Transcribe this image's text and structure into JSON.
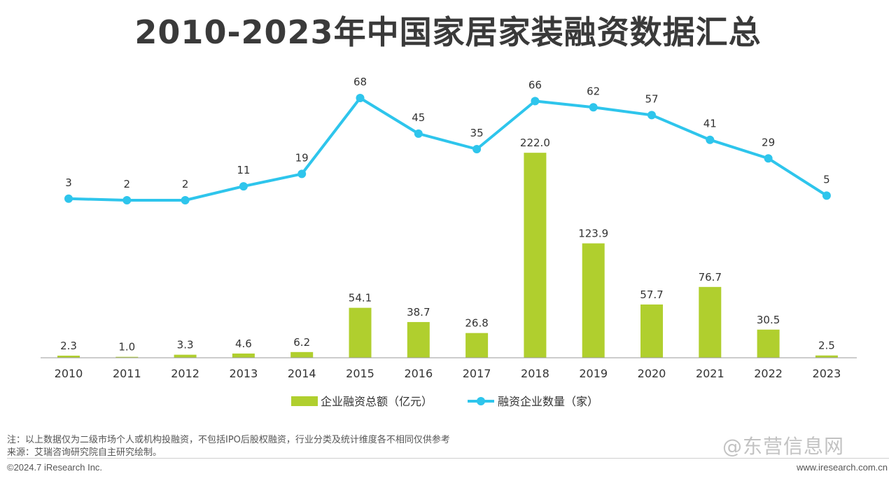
{
  "title": "2010-2023年中国家居家装融资数据汇总",
  "chart_data": {
    "type": "bar",
    "categories": [
      "2010",
      "2011",
      "2012",
      "2013",
      "2014",
      "2015",
      "2016",
      "2017",
      "2018",
      "2019",
      "2020",
      "2021",
      "2022",
      "2023"
    ],
    "series": [
      {
        "name": "企业融资总额（亿元）",
        "type": "bar",
        "color": "#b0cf2e",
        "values": [
          2.3,
          1.0,
          3.3,
          4.6,
          6.2,
          54.1,
          38.7,
          26.8,
          222.0,
          123.9,
          57.7,
          76.7,
          30.5,
          2.5
        ],
        "labels": [
          "2.3",
          "1.0",
          "3.3",
          "4.6",
          "6.2",
          "54.1",
          "38.7",
          "26.8",
          "222.0",
          "123.9",
          "57.7",
          "76.7",
          "30.5",
          "2.5"
        ]
      },
      {
        "name": "融资企业数量（家）",
        "type": "line",
        "color": "#2ec5ec",
        "values": [
          3,
          2,
          2,
          11,
          19,
          68,
          45,
          35,
          66,
          62,
          57,
          41,
          29,
          5
        ],
        "labels": [
          "3",
          "2",
          "2",
          "11",
          "19",
          "68",
          "45",
          "35",
          "66",
          "62",
          "57",
          "41",
          "29",
          "5"
        ]
      }
    ],
    "legend_position": "bottom",
    "grid": false
  },
  "notes": {
    "note": "注：以上数据仅为二级市场个人或机构投融资，不包括IPO后股权融资，行业分类及统计维度各不相同仅供参考",
    "source": "来源：艾瑞咨询研究院自主研究绘制。"
  },
  "footer": {
    "copyright": "©2024.7 iResearch Inc.",
    "site": "www.iresearch.com.cn"
  },
  "watermark": "@东营信息网"
}
